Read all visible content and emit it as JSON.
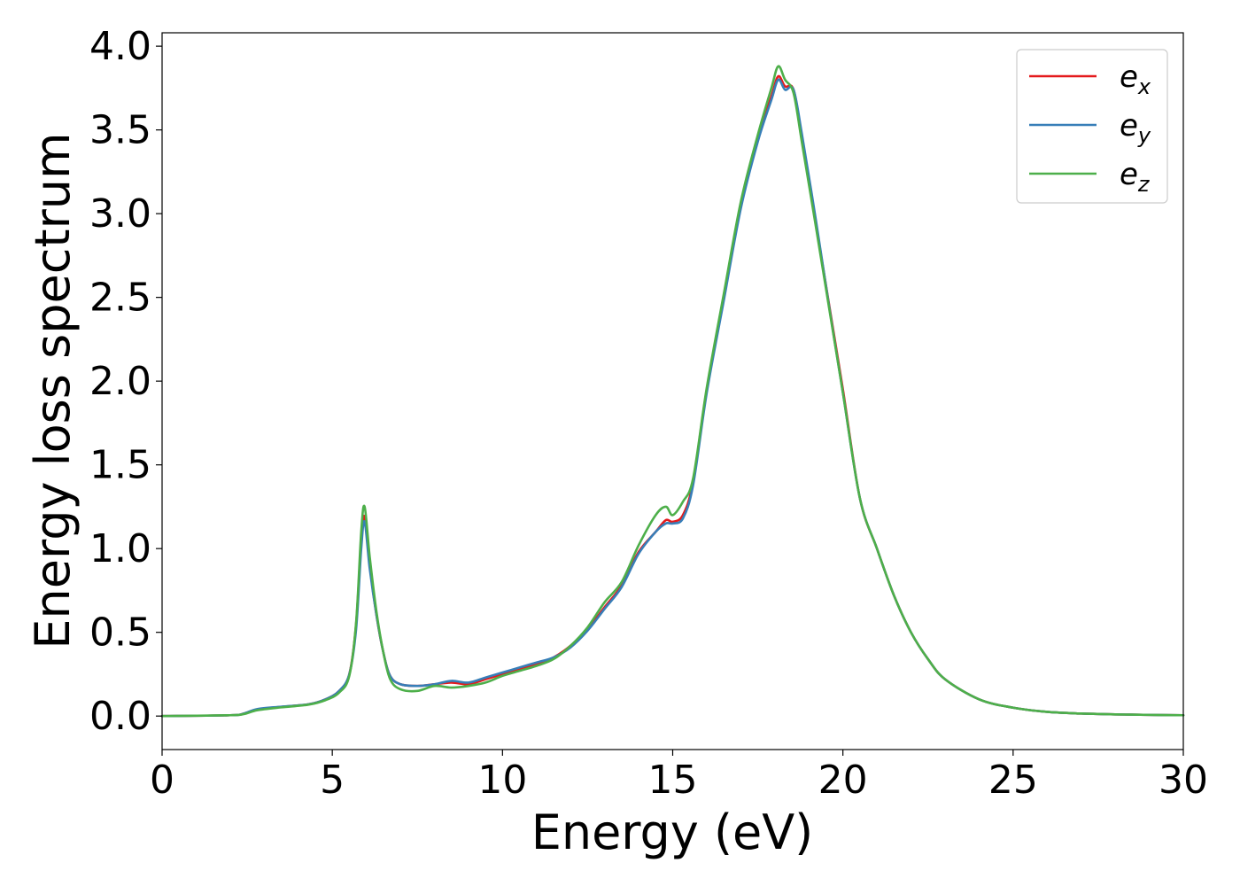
{
  "chart_data": {
    "type": "line",
    "title": "",
    "xlabel": "Energy (eV)",
    "ylabel": "Energy loss spectrum",
    "xlim": [
      0,
      30
    ],
    "ylim": [
      -0.2,
      4.08
    ],
    "xticks": [
      0,
      5,
      10,
      15,
      20,
      25,
      30
    ],
    "xtick_labels": [
      "0",
      "5",
      "10",
      "15",
      "20",
      "25",
      "30"
    ],
    "yticks": [
      0,
      0.5,
      1,
      1.5,
      2,
      2.5,
      3,
      3.5,
      4
    ],
    "ytick_labels": [
      "0.0",
      "0.5",
      "1.0",
      "1.5",
      "2.0",
      "2.5",
      "3.0",
      "3.5",
      "4.0"
    ],
    "grid": false,
    "legend_position": "top-right",
    "series": [
      {
        "name": "e_x",
        "legend_base": "e",
        "legend_sub": "x",
        "color": "#e41a1c",
        "x": [
          0,
          2,
          2.4,
          2.8,
          3.5,
          4.3,
          4.8,
          5.2,
          5.5,
          5.7,
          5.85,
          5.95,
          6.1,
          6.3,
          6.5,
          6.7,
          7.0,
          7.5,
          8.0,
          8.5,
          9.0,
          9.5,
          10.0,
          10.5,
          11.0,
          11.5,
          12.0,
          12.5,
          13.0,
          13.5,
          14.0,
          14.5,
          14.8,
          15.0,
          15.3,
          15.6,
          16.0,
          16.5,
          17.0,
          17.5,
          17.9,
          18.1,
          18.3,
          18.55,
          18.8,
          19.2,
          19.6,
          20.0,
          20.5,
          21.0,
          21.5,
          22.0,
          22.5,
          23.0,
          24.0,
          25.0,
          26.0,
          27.0,
          28.0,
          29.0,
          30.0
        ],
        "y": [
          0.0,
          0.005,
          0.015,
          0.04,
          0.055,
          0.07,
          0.1,
          0.15,
          0.25,
          0.55,
          1.05,
          1.19,
          0.9,
          0.6,
          0.38,
          0.24,
          0.19,
          0.18,
          0.19,
          0.2,
          0.19,
          0.22,
          0.25,
          0.28,
          0.31,
          0.35,
          0.42,
          0.52,
          0.65,
          0.78,
          0.98,
          1.1,
          1.17,
          1.16,
          1.2,
          1.4,
          1.95,
          2.5,
          3.05,
          3.45,
          3.7,
          3.82,
          3.76,
          3.74,
          3.45,
          2.95,
          2.45,
          1.95,
          1.3,
          1.0,
          0.72,
          0.5,
          0.34,
          0.22,
          0.1,
          0.05,
          0.025,
          0.015,
          0.01,
          0.007,
          0.005
        ]
      },
      {
        "name": "e_y",
        "legend_base": "e",
        "legend_sub": "y",
        "color": "#377eb8",
        "x": [
          0,
          2,
          2.4,
          2.8,
          3.5,
          4.3,
          4.8,
          5.2,
          5.5,
          5.7,
          5.85,
          5.95,
          6.1,
          6.3,
          6.5,
          6.7,
          7.0,
          7.5,
          8.0,
          8.5,
          9.0,
          9.5,
          10.0,
          10.5,
          11.0,
          11.5,
          12.0,
          12.5,
          13.0,
          13.5,
          14.0,
          14.5,
          14.8,
          15.0,
          15.3,
          15.6,
          16.0,
          16.5,
          17.0,
          17.5,
          17.9,
          18.1,
          18.3,
          18.55,
          18.8,
          19.2,
          19.6,
          20.0,
          20.5,
          21.0,
          21.5,
          22.0,
          22.5,
          23.0,
          24.0,
          25.0,
          26.0,
          27.0,
          28.0,
          29.0,
          30.0
        ],
        "y": [
          0.0,
          0.005,
          0.015,
          0.042,
          0.056,
          0.07,
          0.1,
          0.15,
          0.25,
          0.52,
          1.0,
          1.16,
          0.88,
          0.6,
          0.38,
          0.24,
          0.19,
          0.18,
          0.19,
          0.21,
          0.2,
          0.23,
          0.26,
          0.29,
          0.32,
          0.35,
          0.41,
          0.51,
          0.64,
          0.77,
          0.97,
          1.1,
          1.15,
          1.15,
          1.18,
          1.38,
          1.93,
          2.48,
          3.03,
          3.43,
          3.68,
          3.8,
          3.74,
          3.74,
          3.47,
          2.97,
          2.44,
          1.93,
          1.3,
          1.0,
          0.72,
          0.5,
          0.34,
          0.22,
          0.1,
          0.05,
          0.025,
          0.015,
          0.01,
          0.007,
          0.005
        ]
      },
      {
        "name": "e_z",
        "legend_base": "e",
        "legend_sub": "z",
        "color": "#4daf4a",
        "x": [
          0,
          2,
          2.4,
          2.8,
          3.5,
          4.3,
          4.8,
          5.2,
          5.5,
          5.7,
          5.85,
          5.95,
          6.1,
          6.3,
          6.5,
          6.7,
          7.0,
          7.5,
          8.0,
          8.5,
          9.0,
          9.5,
          10.0,
          10.5,
          11.0,
          11.5,
          12.0,
          12.5,
          13.0,
          13.5,
          14.0,
          14.5,
          14.8,
          15.0,
          15.3,
          15.6,
          16.0,
          16.5,
          17.0,
          17.5,
          17.9,
          18.1,
          18.3,
          18.55,
          18.8,
          19.2,
          19.6,
          20.0,
          20.5,
          21.0,
          21.5,
          22.0,
          22.5,
          23.0,
          24.0,
          25.0,
          26.0,
          27.0,
          28.0,
          29.0,
          30.0
        ],
        "y": [
          0.0,
          0.005,
          0.012,
          0.035,
          0.052,
          0.068,
          0.095,
          0.14,
          0.24,
          0.56,
          1.1,
          1.25,
          0.95,
          0.62,
          0.38,
          0.22,
          0.16,
          0.15,
          0.18,
          0.17,
          0.18,
          0.2,
          0.24,
          0.27,
          0.3,
          0.34,
          0.42,
          0.53,
          0.68,
          0.8,
          1.02,
          1.2,
          1.25,
          1.2,
          1.28,
          1.42,
          1.96,
          2.52,
          3.07,
          3.47,
          3.75,
          3.88,
          3.8,
          3.72,
          3.42,
          2.93,
          2.43,
          1.93,
          1.3,
          1.0,
          0.72,
          0.5,
          0.34,
          0.22,
          0.1,
          0.05,
          0.025,
          0.015,
          0.01,
          0.007,
          0.005
        ]
      }
    ]
  }
}
